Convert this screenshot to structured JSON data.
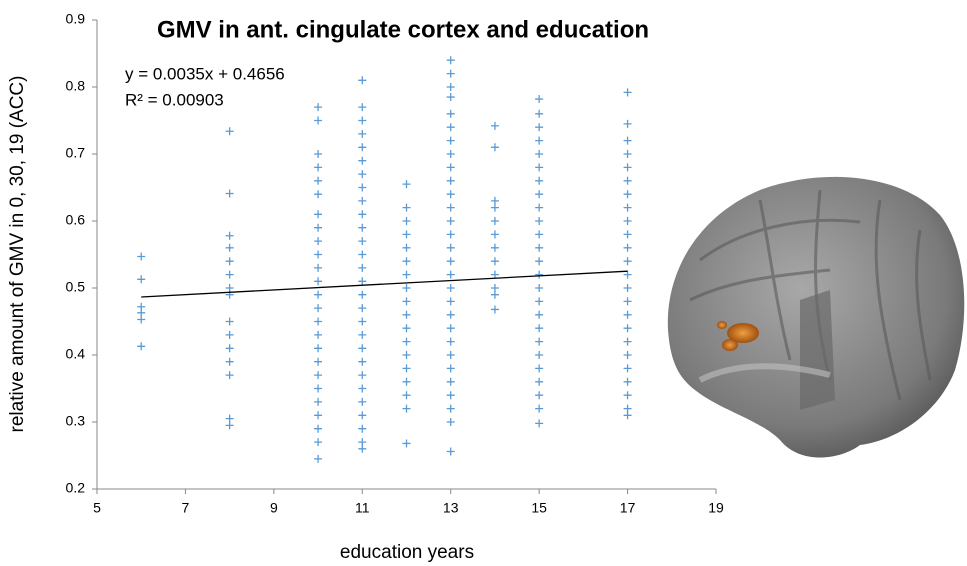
{
  "chart_data": {
    "type": "scatter",
    "title": "GMV in ant. cingulate cortex and education",
    "x_label": "education years",
    "y_label": "relative amount of GMV in 0, 30, 19 (ACC)",
    "equation": "y = 0.0035x + 0.4656",
    "r_squared": "R² = 0.00903",
    "color": "#5b9bd5",
    "trendline": {
      "color": "#000000",
      "x": [
        6,
        17
      ],
      "values": [
        0.4866,
        0.5251
      ]
    },
    "xlim": [
      5,
      19
    ],
    "xticks": [
      5,
      7,
      9,
      11,
      13,
      15,
      17,
      19
    ],
    "ylim": [
      0.2,
      0.9
    ],
    "yticks": [
      0.2,
      0.3,
      0.4,
      0.5,
      0.6,
      0.7,
      0.8,
      0.9
    ],
    "x": [
      6,
      6,
      6,
      6,
      6,
      6,
      8,
      8,
      8,
      8,
      8,
      8,
      8,
      8,
      8,
      8,
      8,
      8,
      8,
      8,
      8,
      10,
      10,
      10,
      10,
      10,
      10,
      10,
      10,
      10,
      10,
      10,
      10,
      10,
      10,
      10,
      10,
      10,
      10,
      10,
      10,
      10,
      10,
      10,
      10,
      10,
      11,
      11,
      11,
      11,
      11,
      11,
      11,
      11,
      11,
      11,
      11,
      11,
      11,
      11,
      11,
      11,
      11,
      11,
      11,
      11,
      11,
      11,
      11,
      11,
      11,
      11,
      11,
      11,
      12,
      12,
      12,
      12,
      12,
      12,
      12,
      12,
      12,
      12,
      12,
      12,
      12,
      12,
      12,
      12,
      12,
      12,
      13,
      13,
      13,
      13,
      13,
      13,
      13,
      13,
      13,
      13,
      13,
      13,
      13,
      13,
      13,
      13,
      13,
      13,
      13,
      13,
      13,
      13,
      13,
      13,
      13,
      13,
      13,
      13,
      13,
      14,
      14,
      14,
      14,
      14,
      14,
      14,
      14,
      14,
      14,
      14,
      14,
      15,
      15,
      15,
      15,
      15,
      15,
      15,
      15,
      15,
      15,
      15,
      15,
      15,
      15,
      15,
      15,
      15,
      15,
      15,
      15,
      15,
      15,
      15,
      15,
      15,
      17,
      17,
      17,
      17,
      17,
      17,
      17,
      17,
      17,
      17,
      17,
      17,
      17,
      17,
      17,
      17,
      17,
      17,
      17,
      17,
      17,
      17,
      17,
      17
    ],
    "values": [
      0.547,
      0.513,
      0.472,
      0.463,
      0.453,
      0.413,
      0.734,
      0.641,
      0.578,
      0.56,
      0.54,
      0.52,
      0.5,
      0.49,
      0.45,
      0.43,
      0.41,
      0.39,
      0.37,
      0.305,
      0.295,
      0.77,
      0.75,
      0.7,
      0.68,
      0.66,
      0.64,
      0.61,
      0.59,
      0.57,
      0.55,
      0.53,
      0.51,
      0.49,
      0.47,
      0.45,
      0.43,
      0.41,
      0.39,
      0.37,
      0.35,
      0.33,
      0.31,
      0.29,
      0.27,
      0.245,
      0.81,
      0.77,
      0.75,
      0.73,
      0.71,
      0.69,
      0.67,
      0.65,
      0.63,
      0.61,
      0.59,
      0.57,
      0.55,
      0.53,
      0.51,
      0.49,
      0.47,
      0.45,
      0.43,
      0.41,
      0.39,
      0.37,
      0.35,
      0.33,
      0.31,
      0.29,
      0.27,
      0.26,
      0.655,
      0.62,
      0.6,
      0.58,
      0.56,
      0.54,
      0.52,
      0.5,
      0.48,
      0.46,
      0.44,
      0.42,
      0.4,
      0.38,
      0.36,
      0.34,
      0.32,
      0.268,
      0.84,
      0.82,
      0.8,
      0.785,
      0.76,
      0.74,
      0.72,
      0.7,
      0.68,
      0.66,
      0.64,
      0.62,
      0.6,
      0.58,
      0.56,
      0.54,
      0.52,
      0.5,
      0.48,
      0.46,
      0.44,
      0.42,
      0.4,
      0.38,
      0.36,
      0.34,
      0.32,
      0.3,
      0.256,
      0.742,
      0.71,
      0.63,
      0.62,
      0.6,
      0.58,
      0.56,
      0.54,
      0.52,
      0.5,
      0.49,
      0.468,
      0.782,
      0.76,
      0.74,
      0.72,
      0.7,
      0.68,
      0.66,
      0.64,
      0.62,
      0.6,
      0.58,
      0.56,
      0.54,
      0.52,
      0.5,
      0.48,
      0.46,
      0.44,
      0.42,
      0.4,
      0.38,
      0.36,
      0.34,
      0.32,
      0.298,
      0.792,
      0.745,
      0.72,
      0.7,
      0.68,
      0.66,
      0.64,
      0.62,
      0.6,
      0.58,
      0.56,
      0.54,
      0.52,
      0.5,
      0.48,
      0.46,
      0.44,
      0.42,
      0.4,
      0.38,
      0.36,
      0.34,
      0.32,
      0.31
    ]
  }
}
